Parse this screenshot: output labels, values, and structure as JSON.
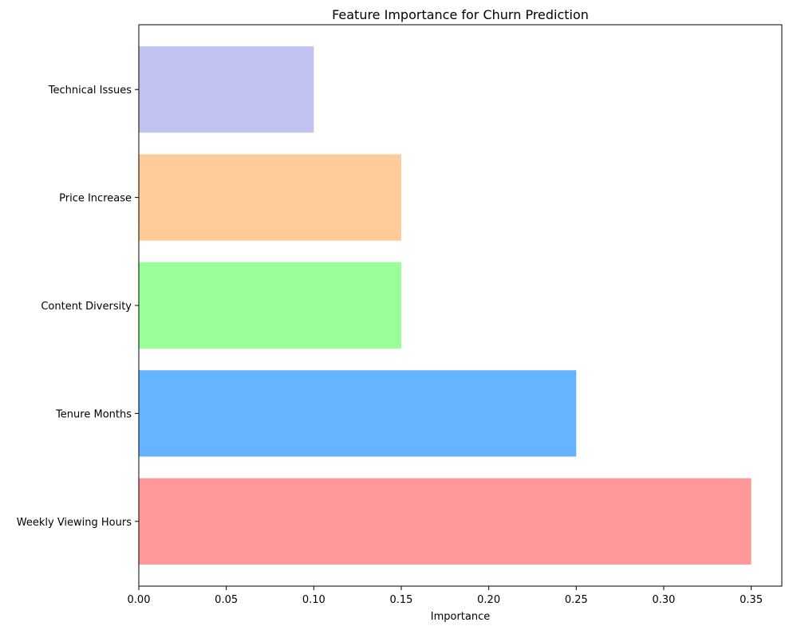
{
  "chart_data": {
    "type": "bar",
    "orientation": "horizontal",
    "title": "Feature Importance for Churn Prediction",
    "xlabel": "Importance",
    "ylabel": "",
    "categories": [
      "Weekly Viewing Hours",
      "Tenure Months",
      "Content Diversity",
      "Price Increase",
      "Technical Issues"
    ],
    "values": [
      0.35,
      0.25,
      0.15,
      0.15,
      0.1
    ],
    "colors": [
      "#FF9999",
      "#66B3FF",
      "#99FF99",
      "#FFCC99",
      "#C2C2F0"
    ],
    "xlim": [
      0,
      0.3675
    ],
    "xticks": [
      0.0,
      0.05,
      0.1,
      0.15,
      0.2,
      0.25,
      0.3,
      0.35
    ],
    "xtick_labels": [
      "0.00",
      "0.05",
      "0.10",
      "0.15",
      "0.20",
      "0.25",
      "0.30",
      "0.35"
    ],
    "grid": false,
    "legend": "none"
  }
}
